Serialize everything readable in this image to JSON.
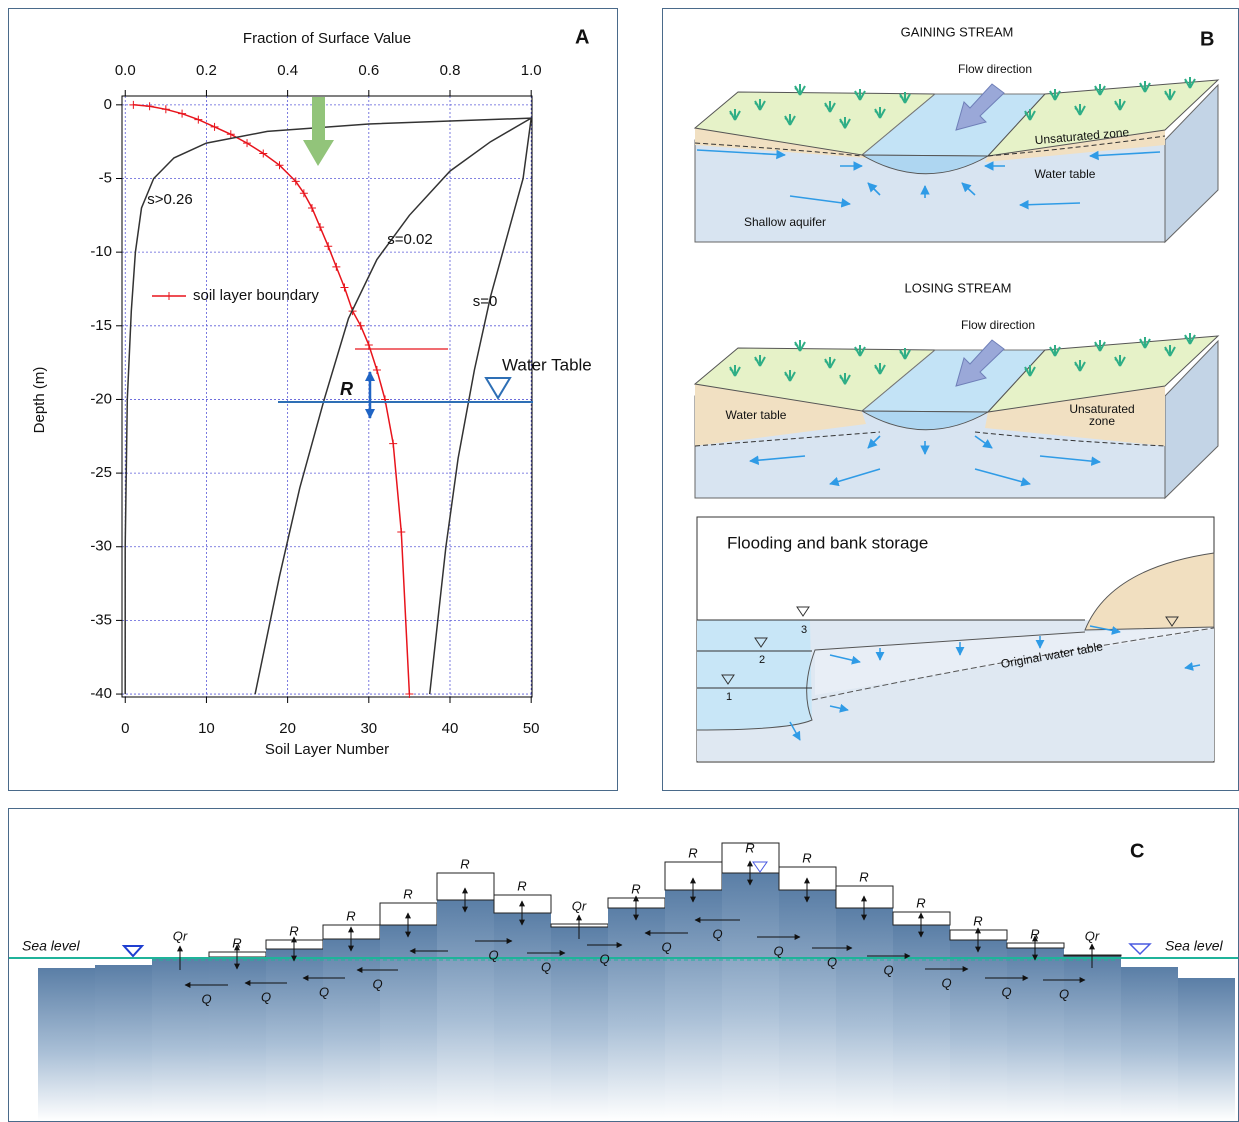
{
  "chart_data": {
    "type": "line",
    "panel_label": "A",
    "x_label": "Soil Layer Number",
    "x2_label": "Fraction of Surface Value",
    "y_label": "Depth (m)",
    "xlim": [
      -0.4,
      50.1
    ],
    "x2lim": [
      -0.008,
      1.002
    ],
    "ylim": [
      -40.2,
      0.6
    ],
    "xticks": [
      0,
      10,
      20,
      30,
      40,
      50
    ],
    "x2ticks": [
      {
        "value": 0,
        "label": "0.0"
      },
      0.2,
      0.4,
      0.6,
      0.8,
      {
        "value": 1,
        "label": "1.0"
      }
    ],
    "yticks": [
      0,
      -5,
      -10,
      -15,
      -20,
      -25,
      -30,
      -35,
      -40
    ],
    "grid": true,
    "series": [
      {
        "name": "soil layer boundary",
        "color": "#e8141c",
        "marker": "+",
        "axis": "x",
        "x": [
          1,
          3,
          5,
          7,
          9,
          11,
          13,
          15,
          17,
          19,
          21,
          22,
          23,
          24,
          25,
          26,
          27,
          28,
          29,
          30,
          31,
          32,
          33,
          34,
          35
        ],
        "y": [
          0,
          -0.1,
          -0.3,
          -0.6,
          -1,
          -1.5,
          -2,
          -2.6,
          -3.3,
          -4.1,
          -5.2,
          -6,
          -7,
          -8.3,
          -9.6,
          -11,
          -12.4,
          -14,
          -15,
          -16.3,
          -18,
          -20,
          -23,
          -29,
          -40
        ]
      },
      {
        "label": "s>0.26",
        "color": "#333333",
        "axis": "x2",
        "x": [
          1,
          0.6,
          0.35,
          0.2,
          0.12,
          0.07,
          0.04,
          0.025,
          0.015,
          0.005,
          0,
          0
        ],
        "y": [
          -0.9,
          -1.3,
          -1.8,
          -2.6,
          -3.6,
          -5,
          -7,
          -10,
          -14,
          -20,
          -30,
          -40
        ]
      },
      {
        "label": "s=0.02",
        "color": "#333333",
        "axis": "x2",
        "x": [
          1,
          0.9,
          0.8,
          0.7,
          0.62,
          0.55,
          0.49,
          0.43,
          0.38,
          0.32
        ],
        "y": [
          -0.9,
          -2.5,
          -4.5,
          -7.5,
          -10.5,
          -14.5,
          -20,
          -26,
          -32,
          -40
        ]
      },
      {
        "label": "s=0",
        "color": "#333333",
        "axis": "x2",
        "x": [
          1,
          0.98,
          0.95,
          0.9,
          0.86,
          0.82,
          0.79,
          0.75
        ],
        "y": [
          -0.9,
          -5,
          -8,
          -13,
          -18,
          -24,
          -30,
          -40
        ]
      }
    ],
    "annotations": {
      "r": "R",
      "water_table": "Water Table"
    }
  },
  "panel_b": {
    "label": "B",
    "gaining": {
      "title": "GAINING STREAM",
      "flow": "Flow direction",
      "unsaturated": "Unsaturated zone",
      "water_table": "Water table",
      "aquifer": "Shallow aquifer"
    },
    "losing": {
      "title": "LOSING STREAM",
      "flow": "Flow direction",
      "water_table": "Water table",
      "unsaturated": [
        "Unsaturated",
        "zone"
      ]
    },
    "flooding": {
      "title": "Flooding and bank storage",
      "original": "Original water table",
      "stages": [
        "1",
        "2",
        "3"
      ]
    }
  },
  "panel_c": {
    "label": "C",
    "sea_level_left": "Sea level",
    "sea_level_right": "Sea level",
    "qr_labels": [
      "Qr",
      "Qr",
      "Qr"
    ],
    "r_labels": [
      "R",
      "R",
      "R",
      "R",
      "R",
      "R",
      "R",
      "R",
      "R",
      "R",
      "R",
      "R",
      "R",
      "R"
    ],
    "q_labels": [
      "Q",
      "Q",
      "Q",
      "Q",
      "Q",
      "Q",
      "Q",
      "Q",
      "Q",
      "Q",
      "Q",
      "Q",
      "Q",
      "Q",
      "Q"
    ]
  }
}
